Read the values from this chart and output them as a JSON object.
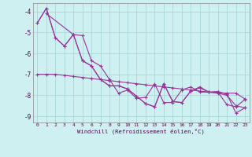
{
  "xlabel": "Windchill (Refroidissement éolien,°C)",
  "bg_color": "#cff0f0",
  "grid_color": "#a8d8d8",
  "line_color": "#993399",
  "xlim": [
    -0.5,
    23.5
  ],
  "ylim": [
    -9.3,
    -3.6
  ],
  "yticks": [
    -9,
    -8,
    -7,
    -6,
    -5,
    -4
  ],
  "xticks": [
    0,
    1,
    2,
    3,
    4,
    5,
    6,
    7,
    8,
    9,
    10,
    11,
    12,
    13,
    14,
    15,
    16,
    17,
    18,
    19,
    20,
    21,
    22,
    23
  ],
  "series": [
    [
      null,
      -4.1,
      null,
      null,
      -5.1,
      -5.15,
      -6.35,
      -6.6,
      -7.25,
      -7.9,
      -7.75,
      -8.15,
      -8.1,
      -7.45,
      -8.35,
      -8.35,
      -7.75,
      -7.6,
      -7.85,
      -7.85,
      -7.85,
      -8.45,
      -8.55,
      -8.2
    ],
    [
      -4.55,
      -3.85,
      -5.25,
      -5.65,
      -5.1,
      -6.35,
      -6.6,
      -7.25,
      -7.55,
      -7.55,
      -7.7,
      -8.05,
      -8.4,
      -8.55,
      -7.45,
      -8.3,
      -8.35,
      -7.8,
      -7.6,
      -7.85,
      -7.9,
      -8.0,
      -8.5,
      -8.6
    ],
    [
      -7.0,
      -7.0,
      -7.0,
      -7.05,
      -7.1,
      -7.15,
      -7.2,
      -7.25,
      -7.3,
      -7.35,
      -7.4,
      -7.45,
      -7.5,
      -7.55,
      -7.6,
      -7.65,
      -7.7,
      -7.75,
      -7.8,
      -7.85,
      -7.88,
      -7.9,
      -7.9,
      -8.18
    ],
    [
      -4.55,
      -3.85,
      -5.25,
      -5.65,
      -5.1,
      -6.35,
      -6.6,
      -7.25,
      -7.55,
      -7.55,
      -7.7,
      -8.05,
      -8.4,
      -8.55,
      -7.45,
      -8.3,
      -8.35,
      -7.8,
      -7.65,
      -7.85,
      -7.82,
      -7.95,
      -8.85,
      -8.6
    ]
  ]
}
